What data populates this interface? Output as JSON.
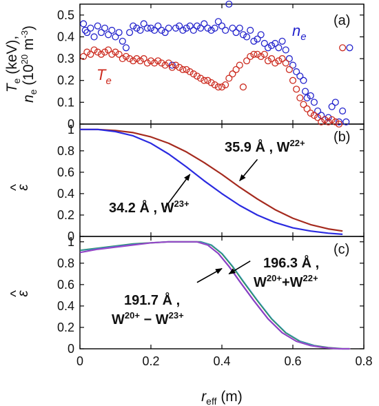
{
  "chart_data": [
    {
      "panel": "(a)",
      "type": "scatter",
      "ylabel_lines": [
        "Te (keV),",
        "ne (10²⁰ m⁻³)"
      ],
      "xlim": [
        0,
        0.8
      ],
      "ylim": [
        0,
        0.55
      ],
      "yticks": [
        "0",
        "0.1",
        "0.2",
        "0.3",
        "0.4",
        "0.5"
      ],
      "series": [
        {
          "name": "ne",
          "color": "#2222cc",
          "points": [
            [
              0.01,
              0.46
            ],
            [
              0.015,
              0.43
            ],
            [
              0.02,
              0.42
            ],
            [
              0.03,
              0.44
            ],
            [
              0.04,
              0.4
            ],
            [
              0.05,
              0.45
            ],
            [
              0.06,
              0.42
            ],
            [
              0.07,
              0.44
            ],
            [
              0.08,
              0.41
            ],
            [
              0.09,
              0.43
            ],
            [
              0.1,
              0.4
            ],
            [
              0.11,
              0.42
            ],
            [
              0.12,
              0.38
            ],
            [
              0.13,
              0.35
            ],
            [
              0.14,
              0.42
            ],
            [
              0.15,
              0.45
            ],
            [
              0.16,
              0.44
            ],
            [
              0.17,
              0.43
            ],
            [
              0.18,
              0.46
            ],
            [
              0.19,
              0.44
            ],
            [
              0.2,
              0.44
            ],
            [
              0.21,
              0.43
            ],
            [
              0.22,
              0.45
            ],
            [
              0.23,
              0.43
            ],
            [
              0.24,
              0.42
            ],
            [
              0.25,
              0.44
            ],
            [
              0.26,
              0.27
            ],
            [
              0.27,
              0.44
            ],
            [
              0.28,
              0.45
            ],
            [
              0.29,
              0.43
            ],
            [
              0.3,
              0.44
            ],
            [
              0.31,
              0.45
            ],
            [
              0.32,
              0.43
            ],
            [
              0.33,
              0.45
            ],
            [
              0.34,
              0.44
            ],
            [
              0.35,
              0.46
            ],
            [
              0.36,
              0.44
            ],
            [
              0.37,
              0.43
            ],
            [
              0.38,
              0.44
            ],
            [
              0.39,
              0.47
            ],
            [
              0.4,
              0.45
            ],
            [
              0.41,
              0.43
            ],
            [
              0.42,
              0.55
            ],
            [
              0.43,
              0.44
            ],
            [
              0.44,
              0.42
            ],
            [
              0.45,
              0.44
            ],
            [
              0.46,
              0.41
            ],
            [
              0.47,
              0.4
            ],
            [
              0.48,
              0.43
            ],
            [
              0.49,
              0.38
            ],
            [
              0.5,
              0.39
            ],
            [
              0.51,
              0.41
            ],
            [
              0.52,
              0.37
            ],
            [
              0.53,
              0.35
            ],
            [
              0.54,
              0.36
            ],
            [
              0.55,
              0.37
            ],
            [
              0.56,
              0.35
            ],
            [
              0.57,
              0.38
            ],
            [
              0.58,
              0.34
            ],
            [
              0.59,
              0.3
            ],
            [
              0.6,
              0.27
            ],
            [
              0.61,
              0.24
            ],
            [
              0.62,
              0.22
            ],
            [
              0.63,
              0.2
            ],
            [
              0.635,
              0.15
            ],
            [
              0.64,
              0.12
            ],
            [
              0.65,
              0.13
            ],
            [
              0.66,
              0.1
            ],
            [
              0.67,
              0.06
            ],
            [
              0.68,
              0.04
            ],
            [
              0.69,
              0.02
            ],
            [
              0.7,
              0.03
            ],
            [
              0.71,
              0.08
            ],
            [
              0.72,
              0.1
            ],
            [
              0.73,
              0.01
            ],
            [
              0.74,
              0.06
            ],
            [
              0.75,
              0.01
            ],
            [
              0.76,
              0.35
            ]
          ]
        },
        {
          "name": "Te",
          "color": "#cc2a1e",
          "points": [
            [
              0.01,
              0.31
            ],
            [
              0.02,
              0.33
            ],
            [
              0.03,
              0.32
            ],
            [
              0.04,
              0.34
            ],
            [
              0.05,
              0.33
            ],
            [
              0.06,
              0.32
            ],
            [
              0.07,
              0.33
            ],
            [
              0.08,
              0.34
            ],
            [
              0.09,
              0.32
            ],
            [
              0.1,
              0.33
            ],
            [
              0.11,
              0.32
            ],
            [
              0.12,
              0.3
            ],
            [
              0.13,
              0.31
            ],
            [
              0.14,
              0.3
            ],
            [
              0.15,
              0.29
            ],
            [
              0.16,
              0.3
            ],
            [
              0.17,
              0.29
            ],
            [
              0.18,
              0.3
            ],
            [
              0.19,
              0.28
            ],
            [
              0.2,
              0.29
            ],
            [
              0.21,
              0.28
            ],
            [
              0.22,
              0.29
            ],
            [
              0.23,
              0.28
            ],
            [
              0.24,
              0.27
            ],
            [
              0.25,
              0.28
            ],
            [
              0.26,
              0.26
            ],
            [
              0.27,
              0.27
            ],
            [
              0.28,
              0.26
            ],
            [
              0.29,
              0.25
            ],
            [
              0.3,
              0.25
            ],
            [
              0.31,
              0.24
            ],
            [
              0.32,
              0.23
            ],
            [
              0.33,
              0.22
            ],
            [
              0.34,
              0.21
            ],
            [
              0.35,
              0.2
            ],
            [
              0.36,
              0.2
            ],
            [
              0.37,
              0.19
            ],
            [
              0.38,
              0.18
            ],
            [
              0.39,
              0.17
            ],
            [
              0.4,
              0.17
            ],
            [
              0.41,
              0.18
            ],
            [
              0.42,
              0.21
            ],
            [
              0.43,
              0.23
            ],
            [
              0.44,
              0.25
            ],
            [
              0.45,
              0.27
            ],
            [
              0.46,
              0.17
            ],
            [
              0.47,
              0.29
            ],
            [
              0.48,
              0.31
            ],
            [
              0.49,
              0.32
            ],
            [
              0.5,
              0.32
            ],
            [
              0.51,
              0.31
            ],
            [
              0.52,
              0.32
            ],
            [
              0.53,
              0.29
            ],
            [
              0.54,
              0.3
            ],
            [
              0.55,
              0.28
            ],
            [
              0.56,
              0.29
            ],
            [
              0.57,
              0.3
            ],
            [
              0.58,
              0.28
            ],
            [
              0.59,
              0.25
            ],
            [
              0.6,
              0.2
            ],
            [
              0.61,
              0.16
            ],
            [
              0.62,
              0.12
            ],
            [
              0.63,
              0.09
            ],
            [
              0.64,
              0.07
            ],
            [
              0.65,
              0.05
            ],
            [
              0.66,
              0.04
            ],
            [
              0.67,
              0.03
            ],
            [
              0.68,
              0.01
            ],
            [
              0.69,
              0.02
            ],
            [
              0.7,
              0.01
            ],
            [
              0.71,
              0.02
            ],
            [
              0.72,
              0.01
            ],
            [
              0.73,
              0.0
            ],
            [
              0.74,
              0.35
            ]
          ]
        }
      ]
    },
    {
      "panel": "(b)",
      "type": "line",
      "ylabel": "ε̂",
      "xlim": [
        0,
        0.8
      ],
      "ylim": [
        0,
        1.05
      ],
      "yticks": [
        "0",
        "0.2",
        "0.4",
        "0.6",
        "0.8",
        "1"
      ],
      "series": [
        {
          "name": "35.9 Å , W22+",
          "color": "#a52a1e",
          "x": [
            0.0,
            0.05,
            0.1,
            0.15,
            0.2,
            0.25,
            0.3,
            0.35,
            0.4,
            0.45,
            0.5,
            0.55,
            0.6,
            0.65,
            0.7,
            0.74
          ],
          "y": [
            1.0,
            1.0,
            0.99,
            0.97,
            0.93,
            0.87,
            0.79,
            0.69,
            0.58,
            0.46,
            0.35,
            0.25,
            0.17,
            0.11,
            0.07,
            0.05
          ]
        },
        {
          "name": "34.2 Å , W23+",
          "color": "#2a2ae0",
          "x": [
            0.0,
            0.05,
            0.1,
            0.15,
            0.2,
            0.25,
            0.3,
            0.35,
            0.4,
            0.45,
            0.5,
            0.55,
            0.6,
            0.65,
            0.7,
            0.74
          ],
          "y": [
            1.0,
            1.0,
            0.98,
            0.94,
            0.87,
            0.77,
            0.65,
            0.52,
            0.4,
            0.29,
            0.2,
            0.13,
            0.08,
            0.05,
            0.03,
            0.02
          ]
        }
      ],
      "annotations": [
        {
          "text": "35.9 Å , W",
          "sup": "22+",
          "arrow_from": [
            0.5,
            0.72
          ],
          "arrow_to": [
            0.45,
            0.52
          ]
        },
        {
          "text": "34.2 Å , W",
          "sup": "23+",
          "arrow_from": [
            0.24,
            0.27
          ],
          "arrow_to": [
            0.31,
            0.58
          ]
        }
      ]
    },
    {
      "panel": "(c)",
      "type": "line",
      "ylabel": "ε̂",
      "xlim": [
        0,
        0.8
      ],
      "ylim": [
        0,
        1.05
      ],
      "yticks": [
        "0",
        "0.2",
        "0.4",
        "0.6",
        "0.8",
        "1"
      ],
      "xticks": [
        "0",
        "0.2",
        "0.4",
        "0.6",
        "0.8"
      ],
      "xlabel": "reff (m)",
      "series": [
        {
          "name": "196.3 Å , W20+ + W22+",
          "color": "#2e8b57",
          "x": [
            0.0,
            0.05,
            0.1,
            0.15,
            0.2,
            0.25,
            0.3,
            0.34,
            0.37,
            0.4,
            0.43,
            0.46,
            0.5,
            0.54,
            0.58,
            0.62,
            0.66,
            0.7,
            0.74,
            0.76
          ],
          "y": [
            0.92,
            0.94,
            0.96,
            0.98,
            0.99,
            1.0,
            1.0,
            1.0,
            0.97,
            0.89,
            0.77,
            0.63,
            0.45,
            0.28,
            0.15,
            0.07,
            0.03,
            0.01,
            0.0,
            0.0
          ]
        },
        {
          "name": "191.7 Å , W20+ − W23+",
          "color": "#7a3fc0",
          "x": [
            0.0,
            0.05,
            0.1,
            0.15,
            0.2,
            0.25,
            0.3,
            0.33,
            0.36,
            0.39,
            0.42,
            0.45,
            0.49,
            0.53,
            0.57,
            0.61,
            0.65,
            0.69,
            0.73,
            0.76
          ],
          "y": [
            0.9,
            0.93,
            0.95,
            0.97,
            0.99,
            1.0,
            1.0,
            1.0,
            0.97,
            0.89,
            0.77,
            0.63,
            0.45,
            0.28,
            0.15,
            0.07,
            0.03,
            0.01,
            0.0,
            0.0
          ]
        }
      ],
      "annotations": [
        {
          "text_lines": [
            "196.3 Å ,",
            "W"
          ],
          "sups": [
            "20+",
            "22+"
          ],
          "arrow_from": [
            0.48,
            0.82
          ],
          "arrow_to": [
            0.42,
            0.7
          ]
        },
        {
          "text_lines": [
            "191.7 Å ,",
            "W"
          ],
          "sups": [
            "20+",
            "23+"
          ],
          "arrow_from": [
            0.33,
            0.62
          ],
          "arrow_to": [
            0.4,
            0.75
          ]
        }
      ]
    }
  ],
  "labels": {
    "panel_a": "(a)",
    "panel_b": "(b)",
    "panel_c": "(c)",
    "ne_series": "n",
    "ne_sub": "e",
    "te_series": "T",
    "te_sub": "e",
    "ylabel_a_line1": "T",
    "ylabel_a_line1_sub": "e",
    "ylabel_a_line1_rest": " (keV),",
    "ylabel_a_line2": "n",
    "ylabel_a_line2_sub": "e",
    "ylabel_a_line2_rest": " (10",
    "ylabel_a_line2_sup": "20",
    "ylabel_a_line2_rest2": " m",
    "ylabel_a_line2_sup2": "-3",
    "ylabel_a_line2_end": ")",
    "ylabel_bc": "ε",
    "ylabel_bc_hat": "^",
    "xlabel_main": "r",
    "xlabel_sub": "eff",
    "xlabel_rest": " (m)",
    "annot_b1_text": "35.9 Å , W",
    "annot_b1_sup": "22+",
    "annot_b2_text": "34.2 Å , W",
    "annot_b2_sup": "23+",
    "annot_c1_line1": "196.3 Å ,",
    "annot_c1_w1": "W",
    "annot_c1_sup1": "20+",
    "annot_c1_join": "+W",
    "annot_c1_sup2": "22+",
    "annot_c2_line1": "191.7 Å ,",
    "annot_c2_w1": "W",
    "annot_c2_sup1": "20+",
    "annot_c2_join": " − W",
    "annot_c2_sup2": "23+"
  }
}
